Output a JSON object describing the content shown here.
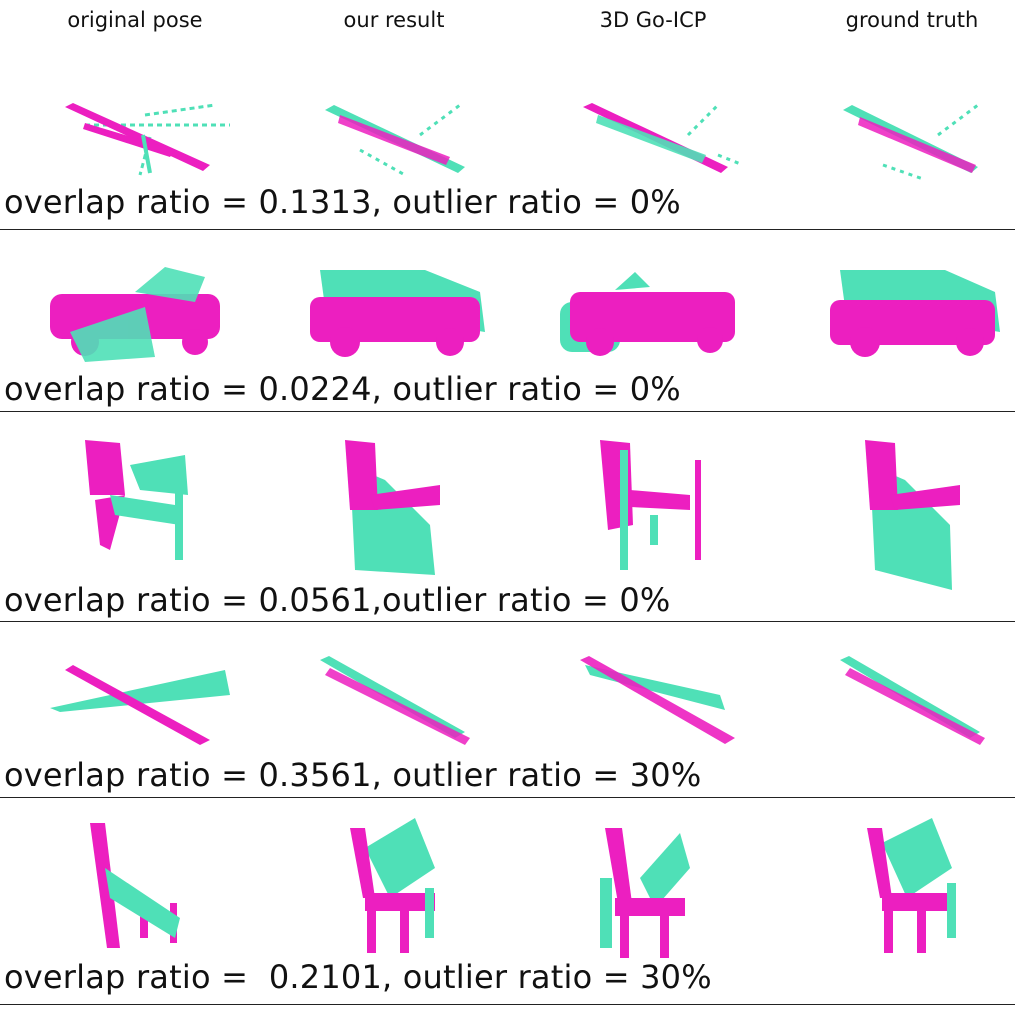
{
  "columns": [
    "original pose",
    "our result",
    "3D Go-ICP",
    "ground truth"
  ],
  "colors": {
    "source": "#ec1fc0",
    "target": "#4fe0b7"
  },
  "rows": [
    {
      "object": "airplane",
      "caption": "overlap ratio = 0.1313, outlier ratio = 0%"
    },
    {
      "object": "car",
      "caption": "overlap ratio = 0.0224, outlier ratio = 0%"
    },
    {
      "object": "chair",
      "caption": "overlap ratio = 0.0561,outlier ratio = 0%"
    },
    {
      "object": "airplane",
      "caption": "overlap ratio = 0.3561, outlier ratio = 30%"
    },
    {
      "object": "chair",
      "caption": "overlap ratio =  0.2101, outlier ratio = 30%"
    }
  ]
}
